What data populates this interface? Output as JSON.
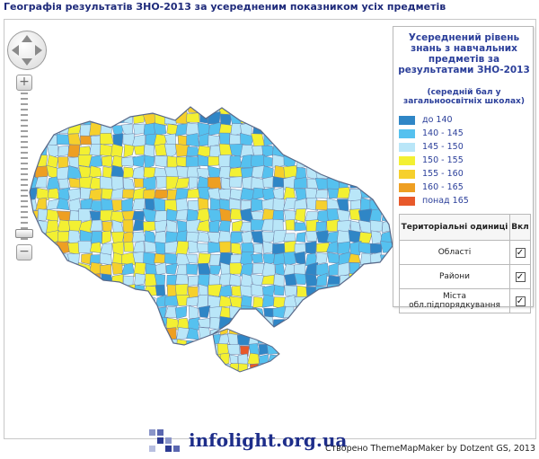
{
  "page": {
    "title": "Географія результатів ЗНО-2013 за усередненим показником усіх предметів"
  },
  "legend": {
    "title": "Усереднений рівень знань з навчальних предметів за результатами ЗНО-2013",
    "subtitle": "(середній бал у загальноосвітніх школах)",
    "classes": [
      {
        "label": "до 140",
        "color": "#2f86c6"
      },
      {
        "label": "140 - 145",
        "color": "#55c1ef"
      },
      {
        "label": "145 - 150",
        "color": "#b9e6f8"
      },
      {
        "label": "150 - 155",
        "color": "#f3f032"
      },
      {
        "label": "155 - 160",
        "color": "#f6d02c"
      },
      {
        "label": "160 - 165",
        "color": "#ee9f22"
      },
      {
        "label": "понад 165",
        "color": "#e8592a"
      }
    ]
  },
  "units_table": {
    "header_name": "Територіальні одиниці",
    "header_toggle": "Вкл",
    "rows": [
      {
        "label": "Області",
        "checked": "✓"
      },
      {
        "label": "Райони",
        "checked": "✓"
      },
      {
        "label": "Міста обл.підпорядкування",
        "checked": "✓"
      }
    ]
  },
  "nav": {
    "zoom_in": "+",
    "zoom_out": "−"
  },
  "footer": {
    "logo": "infolight.org.ua",
    "credit": "Створено ThemeMapMaker by Dotzent GS, 2013"
  }
}
